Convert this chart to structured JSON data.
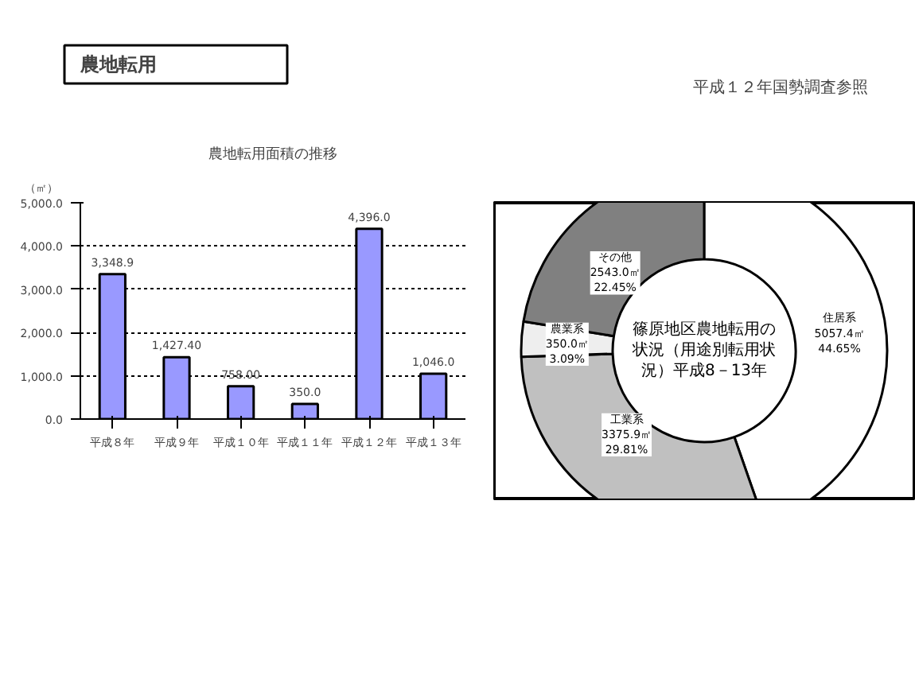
{
  "chart_data": [
    {
      "type": "other",
      "title": "農地転用",
      "annotations": [
        "平成１２年国勢調査参照"
      ]
    },
    {
      "type": "bar",
      "title": "農地転用面積の推移",
      "ylabel": "（㎡）",
      "categories": [
        "平成８年",
        "平成９年",
        "平成１０年",
        "平成１１年",
        "平成１２年",
        "平成１３年"
      ],
      "values": [
        3348.9,
        1427.4,
        758.0,
        350.0,
        4396.0,
        1046.0
      ],
      "color": "#9999ff",
      "value_labels": [
        "3,348.9",
        "1,427.40",
        "758.00",
        "350.0",
        "4,396.0",
        "1,046.0"
      ],
      "ylim": [
        0,
        5000
      ],
      "yticks": [
        {
          "value": 0,
          "label": "0.0"
        },
        {
          "value": 1000,
          "label": "1,000.0"
        },
        {
          "value": 2000,
          "label": "2,000.0"
        },
        {
          "value": 3000,
          "label": "3,000.0"
        },
        {
          "value": 4000,
          "label": "4,000.0"
        },
        {
          "value": 5000,
          "label": "5,000.0"
        }
      ],
      "grid": "y"
    },
    {
      "type": "donut",
      "title": "篠原地区農地転用の状況（用途別転用状況）平成8－13年",
      "categories": [
        "住居系",
        "工業系",
        "農業系",
        "その他"
      ],
      "values": [
        5057.4,
        3375.9,
        350.0,
        2543.0
      ],
      "colors": [
        "#ffffff",
        "#c0c0c0",
        "#eeeeee",
        "#808080"
      ],
      "value_labels": [
        "5057.4㎡\n44.65%",
        "3375.9㎡\n29.81%",
        "350.0㎡\n3.09%",
        "2543.0㎡\n22.45%"
      ]
    }
  ]
}
